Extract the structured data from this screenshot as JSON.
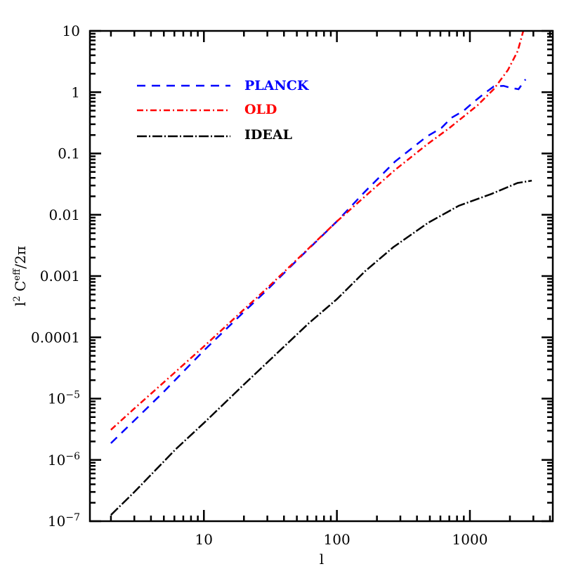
{
  "chart_data": {
    "type": "line",
    "title": "",
    "xlabel": "l",
    "ylabel": "l² C^eff/2π",
    "ylabel_parts": {
      "base": "l",
      "sup1": "2",
      "mid": " C",
      "sup2": "eff",
      "tail": "/2π"
    },
    "xscale": "log",
    "yscale": "log",
    "xlim": [
      1.39,
      4200
    ],
    "ylim": [
      1e-07,
      10
    ],
    "grid": false,
    "legend_position": "upper left",
    "x_ticks": [
      {
        "value": 10,
        "label": "10"
      },
      {
        "value": 100,
        "label": "100"
      },
      {
        "value": 1000,
        "label": "1000"
      }
    ],
    "y_ticks": [
      {
        "value": 10,
        "label": "10"
      },
      {
        "value": 1,
        "label": "1"
      },
      {
        "value": 0.1,
        "label": "0.1"
      },
      {
        "value": 0.01,
        "label": "0.01"
      },
      {
        "value": 0.001,
        "label": "0.001"
      },
      {
        "value": 0.0001,
        "label": "0.0001"
      },
      {
        "value": 1e-05,
        "label": "10",
        "exp": "−5"
      },
      {
        "value": 1e-06,
        "label": "10",
        "exp": "−6"
      },
      {
        "value": 1e-07,
        "label": "10",
        "exp": "−7"
      }
    ],
    "series": [
      {
        "name": "PLANCK",
        "color": "#0000ff",
        "dash": "12 9",
        "points": [
          [
            2,
            1.87e-06
          ],
          [
            3,
            4.4e-06
          ],
          [
            5,
            1.3e-05
          ],
          [
            10,
            6.1e-05
          ],
          [
            20,
            0.00026
          ],
          [
            30,
            0.0006
          ],
          [
            50,
            0.0018
          ],
          [
            100,
            0.0078
          ],
          [
            163,
            0.024
          ],
          [
            274,
            0.074
          ],
          [
            475,
            0.19
          ],
          [
            610,
            0.26
          ],
          [
            725,
            0.38
          ],
          [
            900,
            0.5
          ],
          [
            1040,
            0.66
          ],
          [
            1250,
            0.91
          ],
          [
            1510,
            1.24
          ],
          [
            1790,
            1.27
          ],
          [
            2020,
            1.18
          ],
          [
            2320,
            1.12
          ],
          [
            2620,
            1.62
          ]
        ]
      },
      {
        "name": "OLD",
        "color": "#ff0000",
        "dash": "9 4 2 4",
        "points": [
          [
            2,
            3.1e-06
          ],
          [
            3,
            6.9e-06
          ],
          [
            5,
            1.85e-05
          ],
          [
            10,
            7.1e-05
          ],
          [
            20,
            0.000285
          ],
          [
            30,
            0.00064
          ],
          [
            50,
            0.00185
          ],
          [
            100,
            0.0078
          ],
          [
            163,
            0.02
          ],
          [
            274,
            0.054
          ],
          [
            475,
            0.14
          ],
          [
            700,
            0.26
          ],
          [
            1140,
            0.61
          ],
          [
            1510,
            1.12
          ],
          [
            1930,
            2.3
          ],
          [
            2290,
            4.7
          ],
          [
            2520,
            10
          ]
        ]
      },
      {
        "name": "IDEAL",
        "color": "#000000",
        "dash": "14 3 2 3",
        "points": [
          [
            2,
            1.26e-07
          ],
          [
            3,
            3e-07
          ],
          [
            6.15,
            1.5e-06
          ],
          [
            10,
            4e-06
          ],
          [
            20,
            1.7e-05
          ],
          [
            61.5,
            0.00017
          ],
          [
            100,
            0.00042
          ],
          [
            163,
            0.0012
          ],
          [
            265,
            0.00295
          ],
          [
            485,
            0.0074
          ],
          [
            823,
            0.014
          ],
          [
            1460,
            0.022
          ],
          [
            2280,
            0.033
          ],
          [
            2920,
            0.036
          ]
        ]
      }
    ]
  },
  "legend": {
    "items": [
      {
        "label": "PLANCK",
        "color": "#0000ff"
      },
      {
        "label": "OLD",
        "color": "#ff0000"
      },
      {
        "label": "IDEAL",
        "color": "#000000"
      }
    ]
  }
}
